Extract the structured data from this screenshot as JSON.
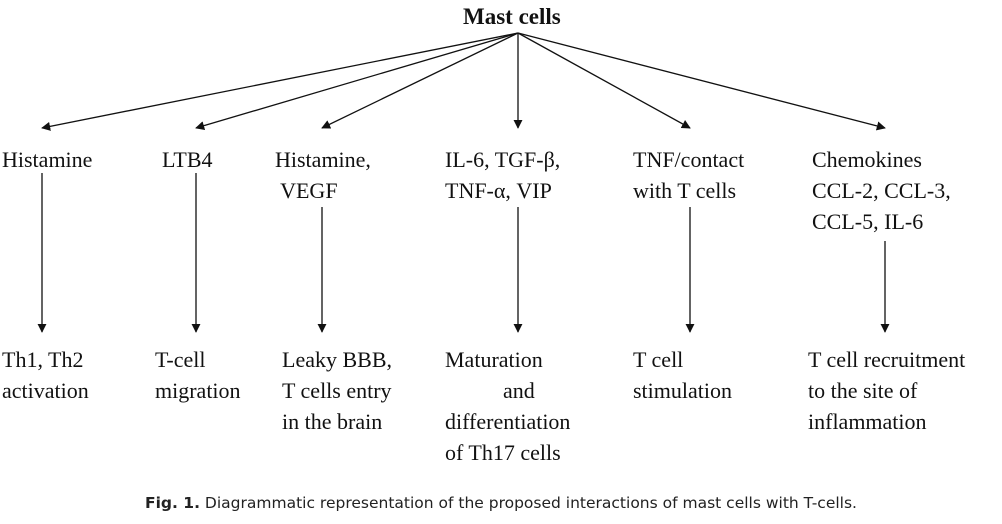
{
  "root": "Mast cells",
  "branches": [
    {
      "mediator": [
        "Histamine"
      ],
      "effect": [
        "Th1, Th2",
        "activation"
      ]
    },
    {
      "mediator": [
        "LTB4"
      ],
      "effect": [
        "T-cell",
        "migration"
      ]
    },
    {
      "mediator": [
        "Histamine,",
        " VEGF"
      ],
      "effect": [
        "Leaky BBB,",
        "T cells entry",
        "in the brain"
      ]
    },
    {
      "mediator": [
        "IL-6, TGF-β,",
        "TNF-α, VIP"
      ],
      "effect": [
        "Maturation",
        "and",
        "differentiation",
        "of Th17 cells"
      ]
    },
    {
      "mediator": [
        "TNF/contact",
        "with T cells"
      ],
      "effect": [
        "T cell",
        "stimulation"
      ]
    },
    {
      "mediator": [
        "Chemokines",
        "CCL-2, CCL-3,",
        "CCL-5, IL-6"
      ],
      "effect": [
        "T cell recruitment",
        "to the site of",
        "inflammation"
      ]
    }
  ],
  "caption": {
    "label": "Fig. 1.",
    "text": " Diagrammatic representation of the proposed interactions of mast cells with T-cells."
  }
}
